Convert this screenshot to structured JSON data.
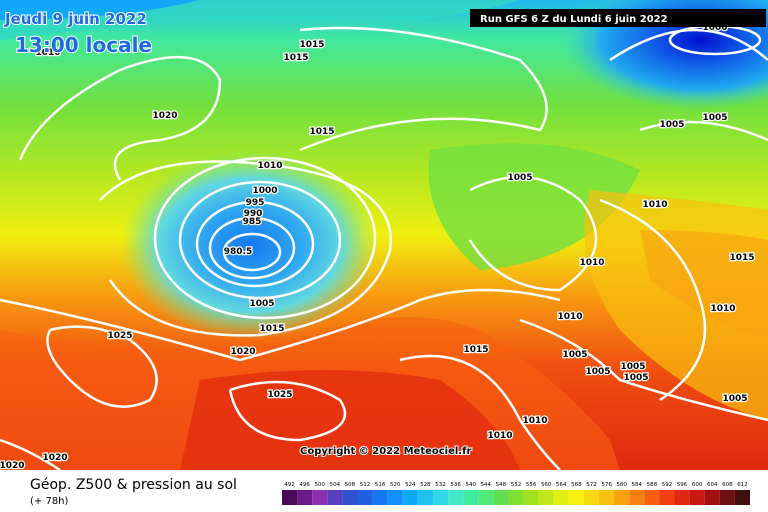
{
  "header": {
    "date": "Jeudi 9 juin 2022",
    "time": "13:00 locale",
    "run": "Run GFS 6 Z du Lundi 6 juin 2022"
  },
  "copyright": "Copyright © 2022 Meteociel.fr",
  "footer": {
    "title": "Géop. Z500 & pression au sol",
    "lead": "(+ 78h)"
  },
  "isobar_labels": [
    "1015",
    "1015",
    "1020",
    "1015",
    "1010",
    "1000",
    "995",
    "990",
    "985",
    "980.5",
    "1005",
    "1015",
    "1020",
    "1025",
    "1025",
    "1020",
    "1020",
    "1005",
    "1005",
    "1005",
    "1010",
    "1010",
    "1015",
    "1010",
    "1010",
    "1005",
    "1005",
    "1005",
    "1005",
    "1005",
    "1010",
    "1010",
    "1015",
    "1000",
    "1010"
  ],
  "colorbar": {
    "ticks": [
      492,
      496,
      500,
      504,
      508,
      512,
      516,
      520,
      524,
      528,
      532,
      536,
      540,
      544,
      548,
      552,
      556,
      560,
      564,
      568,
      572,
      576,
      580,
      584,
      588,
      592,
      596,
      600,
      604,
      608,
      612
    ],
    "colors": [
      "#4a0a5a",
      "#6a1a8a",
      "#8a30b0",
      "#5a40c0",
      "#3050d0",
      "#2060e0",
      "#1478f0",
      "#1090f8",
      "#10a8f8",
      "#20c0f0",
      "#30d8e8",
      "#40e8c8",
      "#40e8a0",
      "#50e878",
      "#60e050",
      "#80e030",
      "#a0e020",
      "#c0e818",
      "#e0f010",
      "#f8f010",
      "#f8d810",
      "#f8c010",
      "#f8a010",
      "#f88010",
      "#f86010",
      "#f04010",
      "#e02810",
      "#c81810",
      "#a01010",
      "#701010",
      "#401010"
    ]
  }
}
